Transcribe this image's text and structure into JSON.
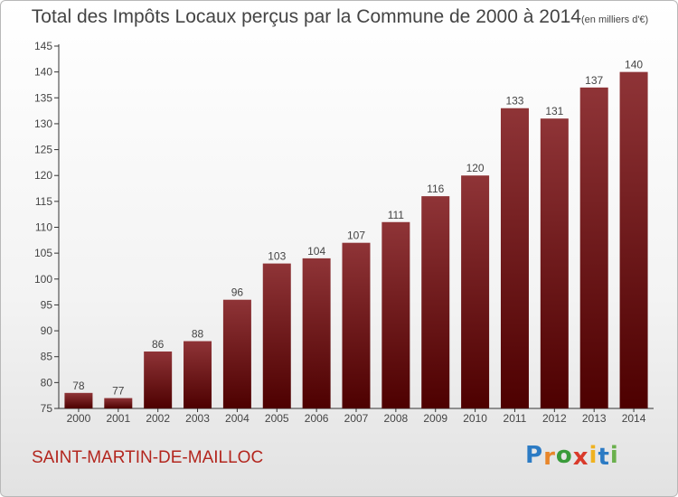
{
  "title": "Total des Impôts Locaux perçus par la Commune de 2000 à 2014",
  "unit_note": "(en milliers d'€)",
  "commune": "SAINT-MARTIN-DE-MAILLOC",
  "logo": {
    "text": "Proxiti",
    "letters": [
      {
        "ch": "P",
        "color": "#2c7bc4"
      },
      {
        "ch": "r",
        "color": "#e8862a"
      },
      {
        "ch": "o",
        "color": "#3a9b3a"
      },
      {
        "ch": "x",
        "color": "#d93a2b"
      },
      {
        "ch": "i",
        "color": "#f0b21f"
      },
      {
        "ch": "t",
        "color": "#2c7bc4"
      },
      {
        "ch": "i",
        "color": "#6ab04c"
      }
    ]
  },
  "colors": {
    "bar_top": "#8f3437",
    "bar_bottom": "#4d0000",
    "axis": "#333333",
    "grid": "#cccccc"
  },
  "chart_data": {
    "type": "bar",
    "categories": [
      "2000",
      "2001",
      "2002",
      "2003",
      "2004",
      "2005",
      "2006",
      "2007",
      "2008",
      "2009",
      "2010",
      "2011",
      "2012",
      "2013",
      "2014"
    ],
    "values": [
      78,
      77,
      86,
      88,
      96,
      103,
      104,
      107,
      111,
      116,
      120,
      133,
      131,
      137,
      140
    ],
    "ylim": [
      75,
      145
    ],
    "yticks": [
      75,
      80,
      85,
      90,
      95,
      100,
      105,
      110,
      115,
      120,
      125,
      130,
      135,
      140,
      145
    ],
    "grid": false,
    "data_labels": true
  }
}
